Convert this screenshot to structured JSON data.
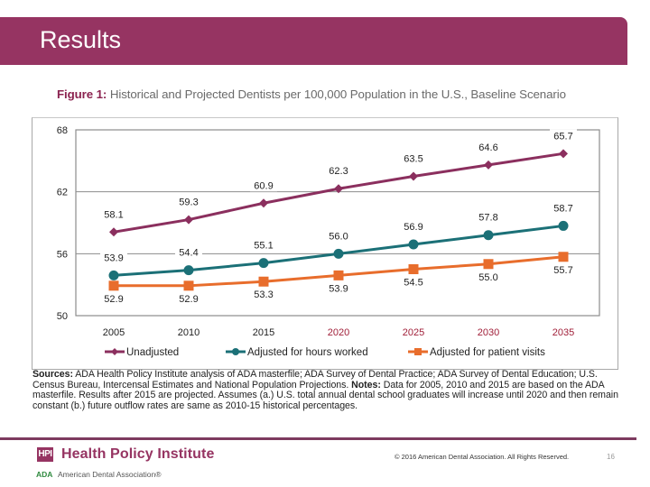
{
  "header": {
    "title": "Results"
  },
  "figure": {
    "label": "Figure 1:",
    "title": "Historical and Projected Dentists per 100,000 Population in the U.S., Baseline Scenario"
  },
  "chart_data": {
    "type": "line",
    "title": "Historical and Projected Dentists per 100,000 Population in the U.S., Baseline Scenario",
    "xlabel": "",
    "ylabel": "",
    "x": [
      "2005",
      "2010",
      "2015",
      "2020",
      "2025",
      "2030",
      "2035"
    ],
    "projected_from": "2020",
    "ylim": [
      50,
      68
    ],
    "yticks": [
      50,
      56,
      62,
      68
    ],
    "grid": "horizontal",
    "legend_position": "bottom",
    "series": [
      {
        "name": "Unadjusted",
        "color": "#8b2f5e",
        "marker": "diamond",
        "values": [
          58.1,
          59.3,
          60.9,
          62.3,
          63.5,
          64.6,
          65.7
        ]
      },
      {
        "name": "Adjusted for hours worked",
        "color": "#1b7077",
        "marker": "circle",
        "values": [
          53.9,
          54.4,
          55.1,
          56.0,
          56.9,
          57.8,
          58.7
        ]
      },
      {
        "name": "Adjusted for patient visits",
        "color": "#e86d2c",
        "marker": "square",
        "values": [
          52.9,
          52.9,
          53.3,
          53.9,
          54.5,
          55.0,
          55.7
        ]
      }
    ]
  },
  "sources": {
    "sources_label": "Sources:",
    "sources_text_1": " ADA Health Policy Institute analysis of ADA masterfile; ADA Survey of Dental Practice; ADA Survey of Dental Education; U.S. Census Bureau, Intercensal Estimates and National Population Projections.",
    "notes_label": "  Notes:",
    "notes_text": " Data for 2005, 2010 and 2015 are based on the ADA masterfile. Results after 2015 are projected. Assumes (a.) U.S. total annual dental school graduates will increase until 2020 and then remain constant (b.) future outflow rates are same as 2010-15 historical percentages."
  },
  "footer": {
    "hpi_logo": "HPI",
    "hpi_name": "Health Policy Institute",
    "ada_logo": "ADA",
    "ada_name": "American Dental Association®",
    "copyright": "© 2016 American Dental Association. All Rights Reserved.",
    "page_number": "16"
  }
}
